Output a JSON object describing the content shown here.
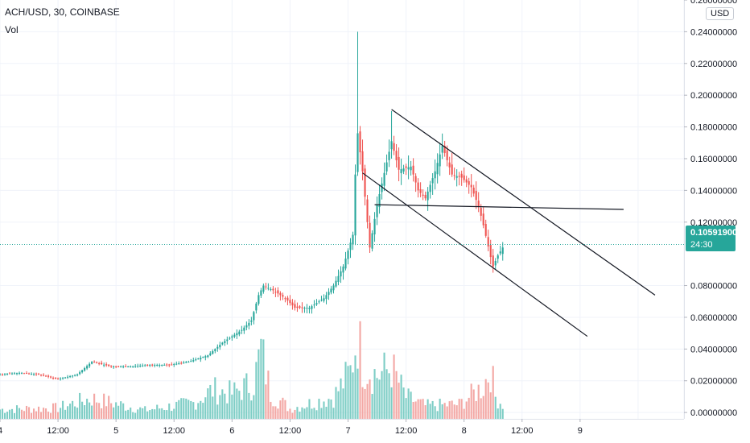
{
  "header": {
    "symbol_line": "ACH/USD, 30, COINBASE",
    "indicator": "Vol"
  },
  "axis": {
    "currency": "USD",
    "current_price": "0.10591900",
    "countdown": "24:30"
  },
  "colors": {
    "up": "#26a69a",
    "down": "#ef5350",
    "vol_up": "#7dcdc5",
    "vol_down": "#f3a7a4",
    "grid": "#f0f3fa",
    "price_line": "#26a69a",
    "trend": "#131722"
  },
  "chart_data": {
    "type": "candlestick",
    "y_axis": {
      "min": -0.004,
      "max": 0.26,
      "ticks": [
        0.24,
        0.22,
        0.2,
        0.18,
        0.16,
        0.14,
        0.12,
        0.08,
        0.06,
        0.04,
        0.02,
        0.0
      ],
      "tick_labels": [
        "0.24000000",
        "0.22000000",
        "0.20000000",
        "0.18000000",
        "0.16000000",
        "0.14000000",
        "0.12000000",
        "0.08000000",
        "0.06000000",
        "0.04000000",
        "0.02000000",
        "0.00000000"
      ],
      "partial_top_label": "0.26000000"
    },
    "x_axis": {
      "min": 0,
      "max": 283,
      "ticks": [
        0,
        24,
        48,
        72,
        96,
        120,
        144,
        168,
        192,
        216,
        240,
        264,
        283
      ],
      "tick_labels": [
        "4",
        "12:00",
        "5",
        "12:00",
        "6",
        "12:00",
        "7",
        "12:00",
        "8",
        "12:00",
        "9",
        "",
        ""
      ]
    },
    "grid": true,
    "current_price": 0.105919,
    "trend_lines": [
      {
        "x1": 150,
        "y1": 0.151,
        "x2": 243,
        "y2": 0.048
      },
      {
        "x1": 162,
        "y1": 0.191,
        "x2": 271,
        "y2": 0.074
      },
      {
        "x1": 155,
        "y1": 0.131,
        "x2": 258,
        "y2": 0.128
      }
    ],
    "anchors": [
      [
        0,
        0.024
      ],
      [
        8,
        0.025
      ],
      [
        16,
        0.024
      ],
      [
        24,
        0.021
      ],
      [
        32,
        0.024
      ],
      [
        38,
        0.032
      ],
      [
        46,
        0.029
      ],
      [
        54,
        0.029
      ],
      [
        62,
        0.03
      ],
      [
        70,
        0.03
      ],
      [
        78,
        0.032
      ],
      [
        86,
        0.036
      ],
      [
        92,
        0.044
      ],
      [
        100,
        0.052
      ],
      [
        104,
        0.058
      ],
      [
        107,
        0.074
      ],
      [
        109,
        0.08
      ],
      [
        113,
        0.077
      ],
      [
        118,
        0.072
      ],
      [
        122,
        0.066
      ],
      [
        128,
        0.066
      ],
      [
        134,
        0.072
      ],
      [
        138,
        0.08
      ],
      [
        142,
        0.092
      ],
      [
        146,
        0.112
      ],
      [
        147,
        0.15
      ],
      [
        148,
        0.176
      ],
      [
        150,
        0.152
      ],
      [
        153,
        0.104
      ],
      [
        156,
        0.131
      ],
      [
        159,
        0.151
      ],
      [
        162,
        0.171
      ],
      [
        165,
        0.153
      ],
      [
        170,
        0.155
      ],
      [
        173,
        0.14
      ],
      [
        176,
        0.135
      ],
      [
        180,
        0.152
      ],
      [
        183,
        0.168
      ],
      [
        187,
        0.15
      ],
      [
        191,
        0.148
      ],
      [
        195,
        0.142
      ],
      [
        198,
        0.13
      ],
      [
        200,
        0.118
      ],
      [
        203,
        0.098
      ],
      [
        204,
        0.092
      ],
      [
        206,
        0.099
      ],
      [
        208,
        0.104
      ]
    ],
    "spikes": [
      {
        "x": 148,
        "high": 0.24
      },
      {
        "x": 162,
        "high": 0.19
      }
    ],
    "volume": {
      "anchors": [
        [
          0,
          1.3
        ],
        [
          24,
          1.5
        ],
        [
          34,
          2.5
        ],
        [
          38,
          2.8
        ],
        [
          60,
          1.2
        ],
        [
          80,
          2.2
        ],
        [
          88,
          4.0
        ],
        [
          96,
          3.5
        ],
        [
          105,
          5.0
        ],
        [
          108,
          9.5
        ],
        [
          112,
          3.5
        ],
        [
          120,
          1.4
        ],
        [
          138,
          3.0
        ],
        [
          145,
          6.5
        ],
        [
          148,
          12.0
        ],
        [
          150,
          7.5
        ],
        [
          156,
          6.0
        ],
        [
          162,
          7.0
        ],
        [
          168,
          3.0
        ],
        [
          176,
          1.8
        ],
        [
          190,
          2.0
        ],
        [
          200,
          4.5
        ],
        [
          203,
          7.0
        ],
        [
          205,
          3.0
        ],
        [
          208,
          2.0
        ]
      ]
    }
  }
}
